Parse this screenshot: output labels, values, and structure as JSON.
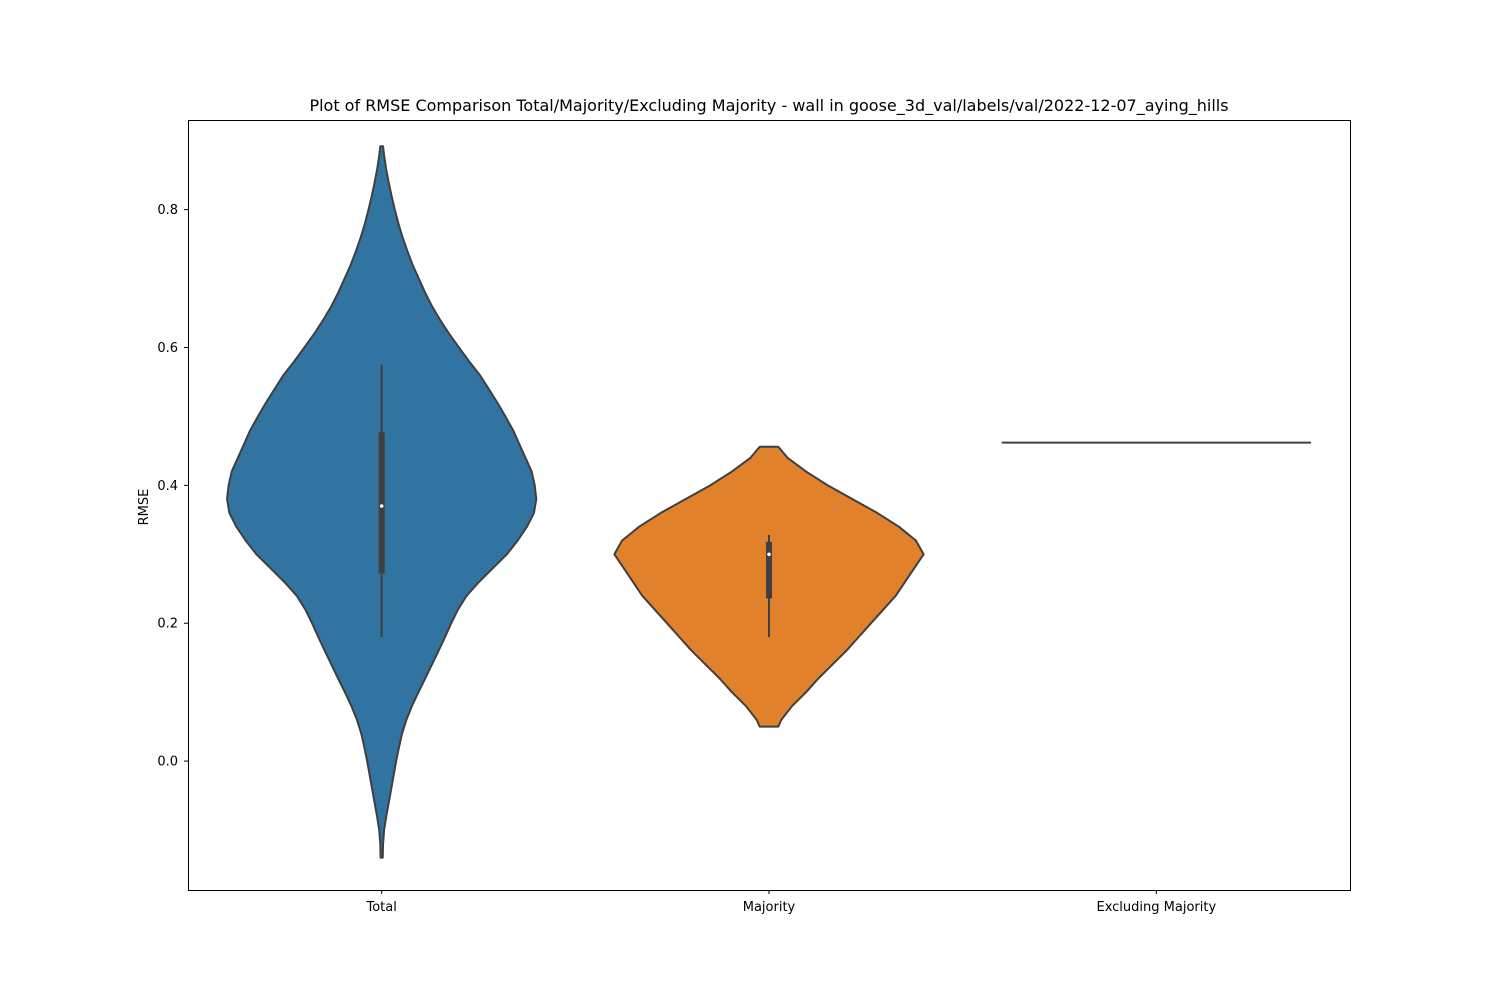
{
  "chart_data": {
    "type": "violin",
    "title": "Plot of RMSE Comparison Total/Majority/Excluding Majority - wall in goose_3d_val/labels/val/2022-12-07_aying_hills",
    "xlabel": "",
    "ylabel": "RMSE",
    "ylim": [
      -0.187,
      0.93
    ],
    "yticks": [
      0.0,
      0.2,
      0.4,
      0.6,
      0.8
    ],
    "ytick_labels": [
      "0.0",
      "0.2",
      "0.4",
      "0.6",
      "0.8"
    ],
    "categories": [
      "Total",
      "Majority",
      "Excluding Majority"
    ],
    "colors": [
      "#3274a1",
      "#e1812c",
      "#3a923a"
    ],
    "outline_color": "#3f3f3f",
    "grid": false,
    "series": [
      {
        "category": "Total",
        "min": 0.18,
        "q1": 0.272,
        "median": 0.37,
        "q3": 0.477,
        "max": 0.575,
        "kde_extent": [
          -0.14,
          0.892
        ],
        "density": [
          [
            -0.14,
            0.007
          ],
          [
            -0.12,
            0.009
          ],
          [
            -0.1,
            0.016
          ],
          [
            -0.08,
            0.03
          ],
          [
            -0.06,
            0.046
          ],
          [
            -0.04,
            0.062
          ],
          [
            -0.02,
            0.078
          ],
          [
            0.0,
            0.094
          ],
          [
            0.02,
            0.112
          ],
          [
            0.04,
            0.132
          ],
          [
            0.06,
            0.16
          ],
          [
            0.08,
            0.196
          ],
          [
            0.1,
            0.238
          ],
          [
            0.12,
            0.282
          ],
          [
            0.14,
            0.325
          ],
          [
            0.16,
            0.368
          ],
          [
            0.18,
            0.41
          ],
          [
            0.2,
            0.45
          ],
          [
            0.22,
            0.494
          ],
          [
            0.24,
            0.55
          ],
          [
            0.26,
            0.63
          ],
          [
            0.28,
            0.72
          ],
          [
            0.3,
            0.81
          ],
          [
            0.32,
            0.88
          ],
          [
            0.34,
            0.94
          ],
          [
            0.36,
            0.985
          ],
          [
            0.38,
            1.0
          ],
          [
            0.4,
            0.99
          ],
          [
            0.42,
            0.97
          ],
          [
            0.44,
            0.93
          ],
          [
            0.46,
            0.89
          ],
          [
            0.48,
            0.85
          ],
          [
            0.5,
            0.8
          ],
          [
            0.52,
            0.748
          ],
          [
            0.54,
            0.692
          ],
          [
            0.56,
            0.635
          ],
          [
            0.58,
            0.565
          ],
          [
            0.6,
            0.5
          ],
          [
            0.62,
            0.436
          ],
          [
            0.64,
            0.378
          ],
          [
            0.66,
            0.325
          ],
          [
            0.68,
            0.28
          ],
          [
            0.7,
            0.24
          ],
          [
            0.72,
            0.2
          ],
          [
            0.74,
            0.166
          ],
          [
            0.76,
            0.135
          ],
          [
            0.78,
            0.108
          ],
          [
            0.8,
            0.085
          ],
          [
            0.82,
            0.064
          ],
          [
            0.84,
            0.045
          ],
          [
            0.86,
            0.028
          ],
          [
            0.88,
            0.015
          ],
          [
            0.892,
            0.009
          ]
        ]
      },
      {
        "category": "Majority",
        "min": 0.18,
        "q1": 0.236,
        "median": 0.3,
        "q3": 0.318,
        "max": 0.328,
        "kde_extent": [
          0.05,
          0.456
        ],
        "density": [
          [
            0.05,
            0.06
          ],
          [
            0.06,
            0.08
          ],
          [
            0.08,
            0.15
          ],
          [
            0.1,
            0.24
          ],
          [
            0.12,
            0.32
          ],
          [
            0.14,
            0.41
          ],
          [
            0.16,
            0.5
          ],
          [
            0.18,
            0.58
          ],
          [
            0.2,
            0.66
          ],
          [
            0.22,
            0.74
          ],
          [
            0.24,
            0.82
          ],
          [
            0.26,
            0.88
          ],
          [
            0.28,
            0.94
          ],
          [
            0.3,
            1.0
          ],
          [
            0.32,
            0.95
          ],
          [
            0.34,
            0.84
          ],
          [
            0.36,
            0.7
          ],
          [
            0.38,
            0.54
          ],
          [
            0.4,
            0.38
          ],
          [
            0.42,
            0.24
          ],
          [
            0.44,
            0.12
          ],
          [
            0.456,
            0.06
          ]
        ]
      },
      {
        "category": "Excluding Majority",
        "value": 0.462
      }
    ]
  }
}
